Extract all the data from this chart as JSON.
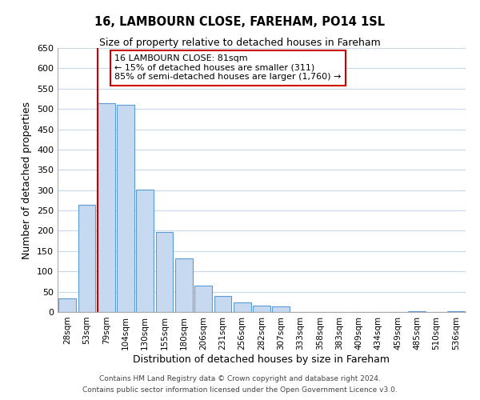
{
  "title": "16, LAMBOURN CLOSE, FAREHAM, PO14 1SL",
  "subtitle": "Size of property relative to detached houses in Fareham",
  "xlabel": "Distribution of detached houses by size in Fareham",
  "ylabel": "Number of detached properties",
  "categories": [
    "28sqm",
    "53sqm",
    "79sqm",
    "104sqm",
    "130sqm",
    "155sqm",
    "180sqm",
    "206sqm",
    "231sqm",
    "256sqm",
    "282sqm",
    "307sqm",
    "333sqm",
    "358sqm",
    "383sqm",
    "409sqm",
    "434sqm",
    "459sqm",
    "485sqm",
    "510sqm",
    "536sqm"
  ],
  "values": [
    33,
    263,
    515,
    510,
    302,
    197,
    132,
    65,
    40,
    24,
    15,
    14,
    0,
    0,
    0,
    0,
    0,
    0,
    2,
    0,
    2
  ],
  "bar_color": "#c6d9f0",
  "bar_edge_color": "#5b9bd5",
  "highlight_bar_index": 2,
  "highlight_line_color": "#cc0000",
  "ylim": [
    0,
    650
  ],
  "yticks": [
    0,
    50,
    100,
    150,
    200,
    250,
    300,
    350,
    400,
    450,
    500,
    550,
    600,
    650
  ],
  "annotation_title": "16 LAMBOURN CLOSE: 81sqm",
  "annotation_line1": "← 15% of detached houses are smaller (311)",
  "annotation_line2": "85% of semi-detached houses are larger (1,760) →",
  "annotation_box_color": "#ffffff",
  "annotation_box_edge": "#cc0000",
  "footer_line1": "Contains HM Land Registry data © Crown copyright and database right 2024.",
  "footer_line2": "Contains public sector information licensed under the Open Government Licence v3.0.",
  "background_color": "#ffffff",
  "grid_color": "#c8d8e8"
}
